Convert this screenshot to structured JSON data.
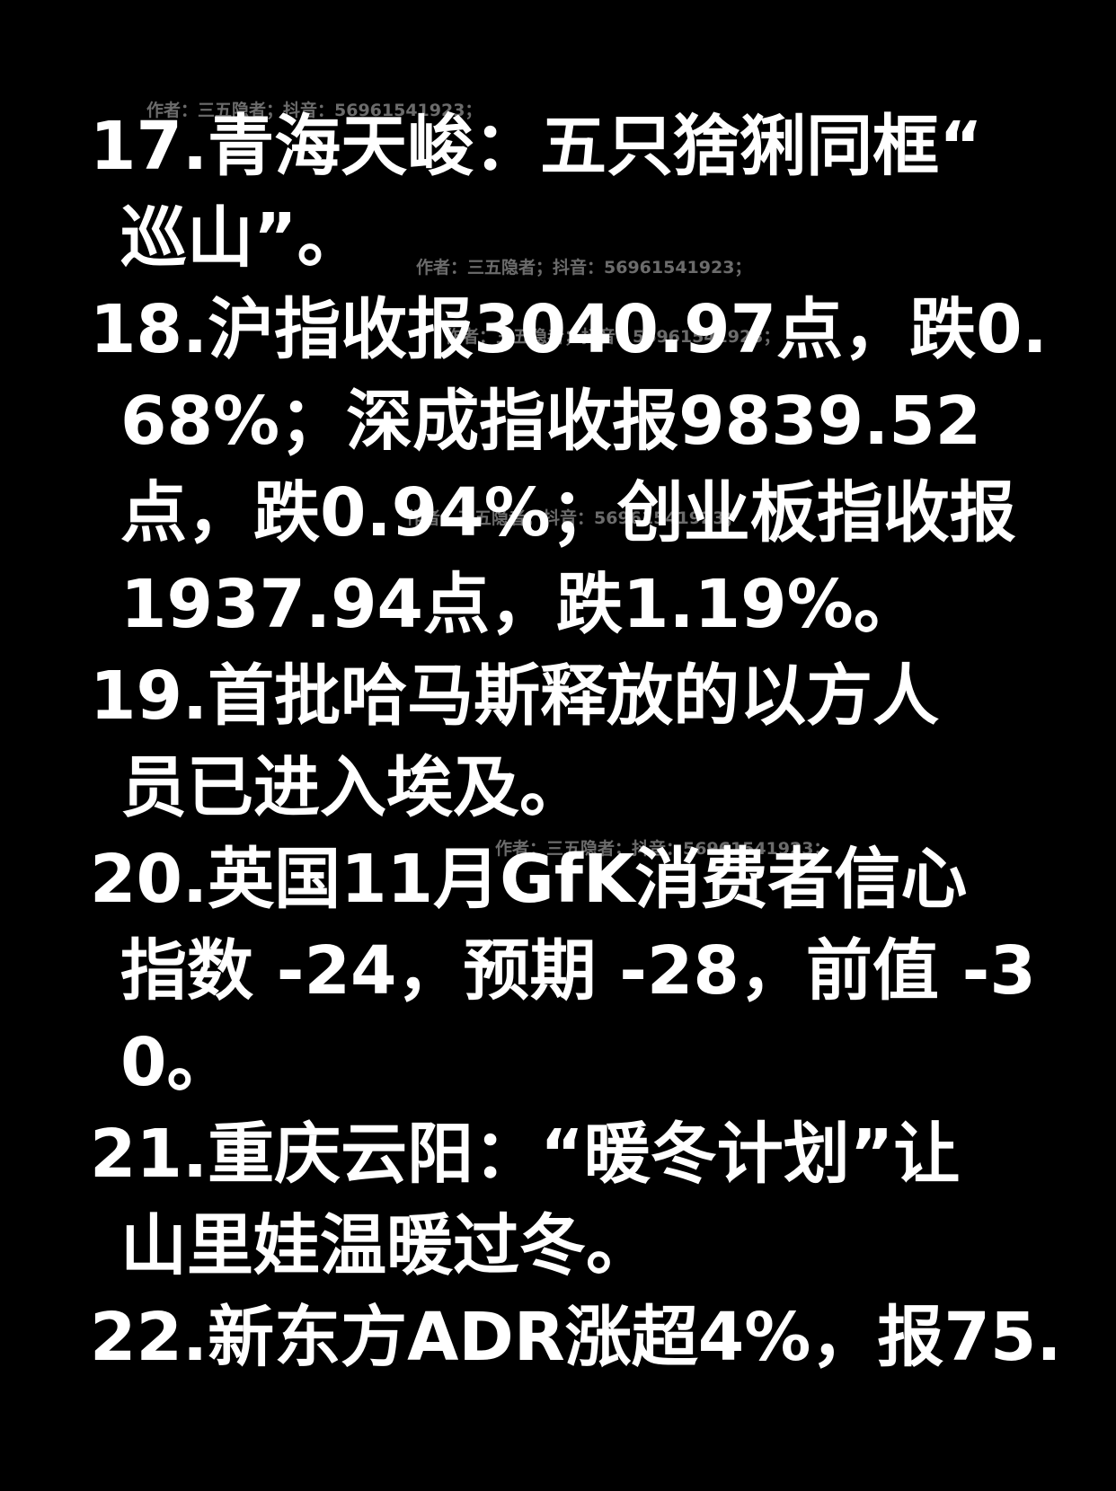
{
  "watermark": "作者：三五隐者；抖音：56961541923；",
  "items": [
    {
      "lines": [
        "17.青海天峻：五只猞猁同框“",
        "巡山”。"
      ]
    },
    {
      "lines": [
        "18.沪指收报3040.97点，跌0.",
        "68%；深成指收报9839.52",
        "点，跌0.94%；创业板指收报",
        "1937.94点，跌1.19%。"
      ]
    },
    {
      "lines": [
        "19.首批哈马斯释放的以方人",
        "员已进入埃及。"
      ]
    },
    {
      "lines": [
        "20.英国11月GfK消费者信心",
        "指数 -24，预期 -28，前值 -3",
        "0。"
      ]
    },
    {
      "lines": [
        "21.重庆云阳：“暖冬计划”让",
        "山里娃温暖过冬。"
      ]
    },
    {
      "lines": [
        "22.新东方ADR涨超4%，报75."
      ]
    }
  ]
}
